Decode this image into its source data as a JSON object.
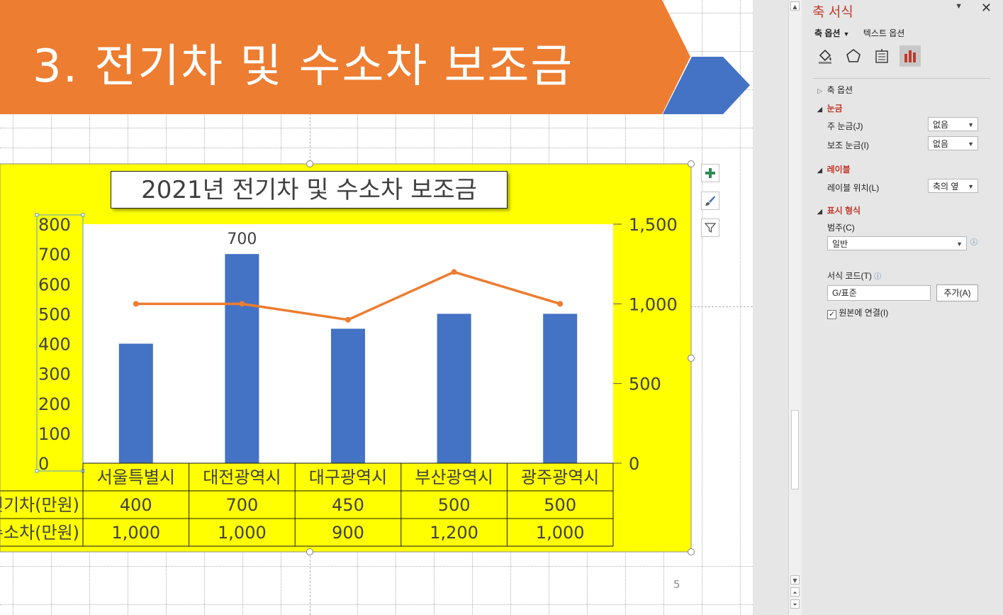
{
  "slide": {
    "title": "3. 전기차 및 수소차 보조금",
    "page_number": "5",
    "banner_color": "#ED7D31",
    "chevron_color": "#4472C4"
  },
  "chart_data": {
    "type": "bar",
    "title": "2021년 전기차 및 수소차 보조금",
    "categories": [
      "서울특별시",
      "대전광역시",
      "대구광역시",
      "부산광역시",
      "광주광역시"
    ],
    "series": [
      {
        "name": "전기차(만원)",
        "type": "bar",
        "axis": "primary",
        "color": "#4472C4",
        "values": [
          400,
          700,
          450,
          500,
          500
        ],
        "values_text": [
          "400",
          "700",
          "450",
          "500",
          "500"
        ]
      },
      {
        "name": "수소차(만원)",
        "type": "line",
        "axis": "secondary",
        "color": "#ED7D31",
        "values": [
          1000,
          1000,
          900,
          1200,
          1000
        ],
        "values_text": [
          "1,000",
          "1,000",
          "900",
          "1,200",
          "1,000"
        ]
      }
    ],
    "data_label": "700",
    "y_primary": {
      "ylim": [
        0,
        800
      ],
      "ticks": [
        "0",
        "100",
        "200",
        "300",
        "400",
        "500",
        "600",
        "700",
        "800"
      ]
    },
    "y_secondary": {
      "ylim": [
        0,
        1500
      ],
      "ticks": [
        "0",
        "500",
        "1,000",
        "1,500"
      ]
    },
    "data_table": true,
    "background": "#FFFF00",
    "legend": "none"
  },
  "pane": {
    "title": "축 서식",
    "tab_axis": "축 옵션",
    "tab_text": "텍스트 옵션",
    "icons": [
      "fill-bucket-icon",
      "pentagon-icon",
      "size-properties-icon",
      "axis-options-icon"
    ],
    "section_axis_options": "축 옵션",
    "section_ticks": "눈금",
    "major_tick_label": "주 눈금(J)",
    "major_tick_value": "없음",
    "minor_tick_label": "보조 눈금(I)",
    "minor_tick_value": "없음",
    "section_labels": "레이블",
    "label_position_label": "레이블 위치(L)",
    "label_position_value": "축의 옆",
    "section_number": "표시 형식",
    "category_label": "범주(C)",
    "category_value": "일반",
    "format_code_label": "서식 코드(T)",
    "format_code_value": "G/표준",
    "add_button": "추가(A)",
    "linked_label": "원본에 연결(I)",
    "linked_checked": true,
    "accent_color": "#C0392B"
  }
}
